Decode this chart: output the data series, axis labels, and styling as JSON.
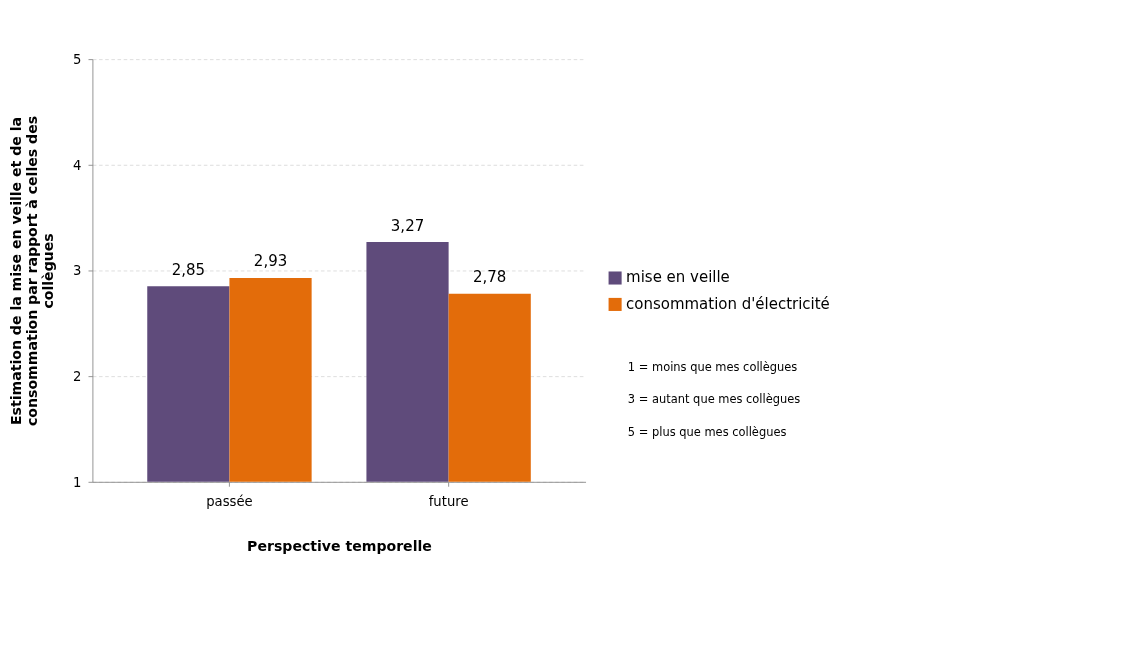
{
  "chart_data": {
    "type": "bar",
    "xlabel": "Perspective temporelle",
    "ylabel": "Estimation de la mise en veille et de la consommation par rapport à celles des collègues",
    "categories": [
      "passée",
      "future"
    ],
    "series": [
      {
        "name": "mise en veille",
        "color": "#5f4b7b",
        "values": [
          2.85,
          3.27
        ],
        "value_labels": [
          "2,85",
          "3,27"
        ]
      },
      {
        "name": "consommation d'électricité",
        "color": "#e36c0a",
        "values": [
          2.93,
          2.78
        ],
        "value_labels": [
          "2,93",
          "2,78"
        ]
      }
    ],
    "ylim": [
      1,
      5
    ],
    "yticks": [
      1,
      2,
      3,
      4,
      5
    ],
    "grid": "y",
    "legend": "right",
    "annotations": [
      "1 = moins que mes collègues",
      "3 = autant que mes collègues",
      "5 = plus que mes collègues"
    ]
  }
}
